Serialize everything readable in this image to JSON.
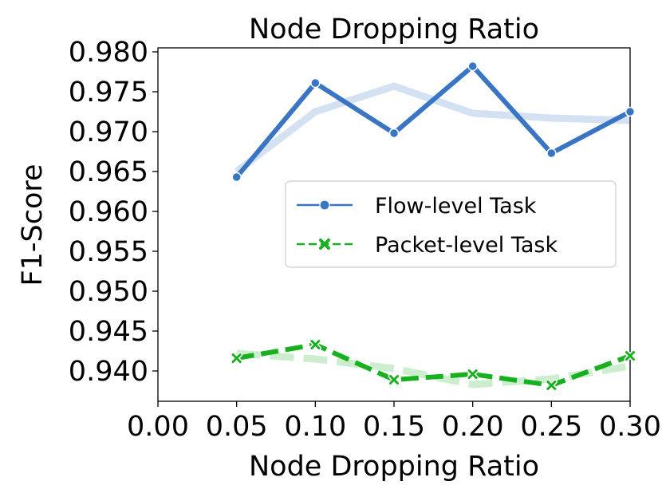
{
  "chart_data": {
    "type": "line",
    "title": "Node Dropping Ratio",
    "xlabel": "Node Dropping Ratio",
    "ylabel": "F1-Score",
    "xlim": [
      0.0,
      0.3
    ],
    "ylim": [
      0.9362,
      0.9805
    ],
    "x_ticks": [
      "0.00",
      "0.05",
      "0.10",
      "0.15",
      "0.20",
      "0.25",
      "0.30"
    ],
    "y_ticks": [
      "0.940",
      "0.945",
      "0.950",
      "0.955",
      "0.960",
      "0.965",
      "0.970",
      "0.975",
      "0.980"
    ],
    "x": [
      0.05,
      0.1,
      0.15,
      0.2,
      0.25,
      0.3
    ],
    "series": [
      {
        "name": "Flow-level Task",
        "color": "#3a75c4",
        "marker": "circle",
        "linestyle": "solid",
        "values": [
          0.9643,
          0.9761,
          0.9698,
          0.9782,
          0.9673,
          0.9725
        ],
        "smoothed": [
          0.965,
          0.9725,
          0.9757,
          0.9723,
          0.9717,
          0.9714
        ]
      },
      {
        "name": "Packet-level Task",
        "color": "#17b01e",
        "marker": "x",
        "linestyle": "dashed",
        "values": [
          0.9416,
          0.9433,
          0.9389,
          0.9396,
          0.9382,
          0.9419
        ],
        "smoothed": [
          0.9422,
          0.9415,
          0.9403,
          0.9383,
          0.939,
          0.9406
        ]
      }
    ],
    "legend_position": "center-right",
    "grid": false
  }
}
